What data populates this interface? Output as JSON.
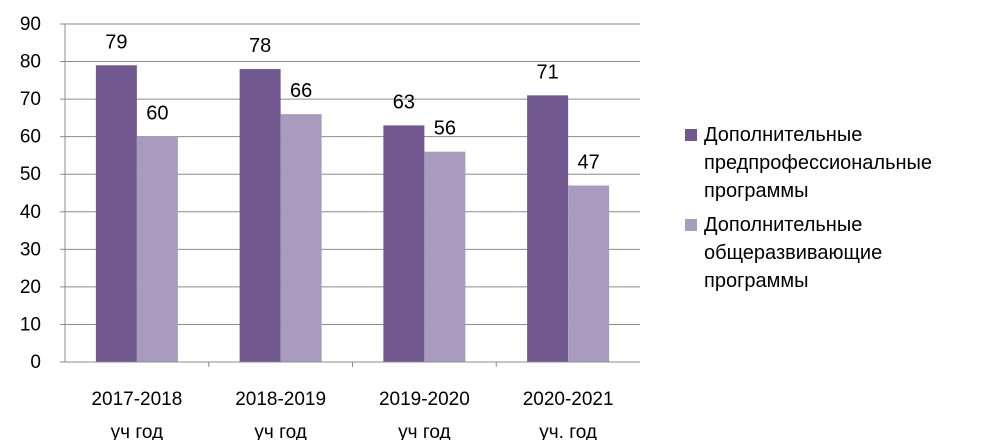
{
  "chart_data": {
    "type": "bar",
    "title": "",
    "xlabel": "",
    "ylabel": "",
    "ylim": [
      0,
      90
    ],
    "yticks": [
      0,
      10,
      20,
      30,
      40,
      50,
      60,
      70,
      80,
      90
    ],
    "grid": true,
    "legend_position": "right",
    "categories": [
      [
        "2017-2018",
        "уч год"
      ],
      [
        "2018-2019",
        "уч год"
      ],
      [
        "2019-2020",
        "уч год"
      ],
      [
        "2020-2021",
        "уч. год"
      ]
    ],
    "series": [
      {
        "name": "Дополнительные предпрофессиональные программы",
        "name_lines": [
          "Дополнительные",
          "предпрофессиональные",
          "программы"
        ],
        "color": "#71588f",
        "values": [
          79,
          78,
          63,
          71
        ]
      },
      {
        "name": "Дополнительные общеразвивающие программы",
        "name_lines": [
          "Дополнительные",
          "общеразвивающие",
          "программы"
        ],
        "color": "#a99bbd",
        "values": [
          60,
          66,
          56,
          47
        ]
      }
    ]
  }
}
